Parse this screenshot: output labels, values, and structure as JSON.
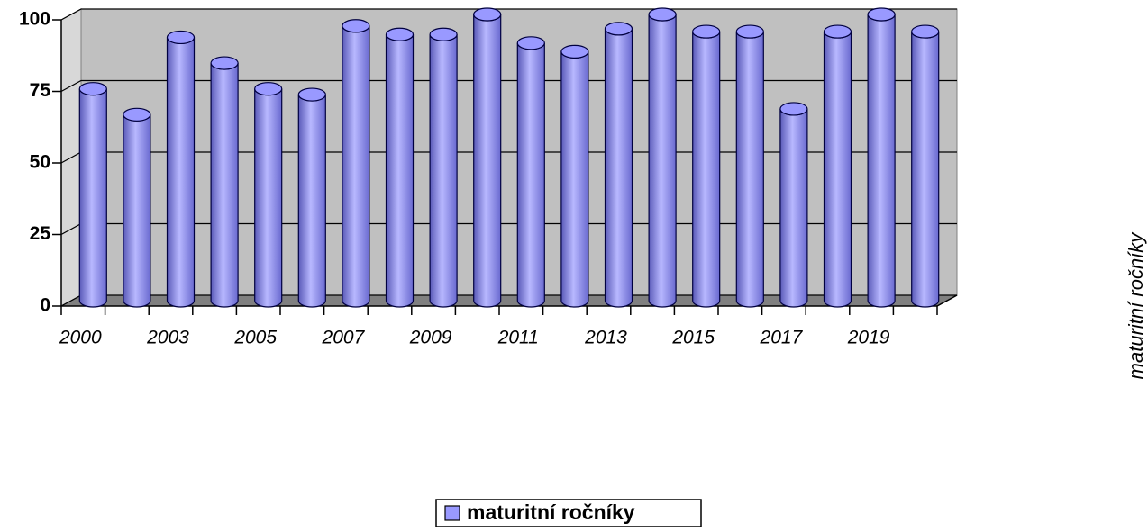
{
  "chart_data": {
    "type": "bar",
    "categories": [
      "2000",
      null,
      "2003",
      null,
      "2005",
      null,
      "2007",
      null,
      "2009",
      null,
      "2011",
      null,
      "2013",
      null,
      "2015",
      null,
      "2017",
      null,
      "2019",
      null
    ],
    "series": [
      {
        "name": "maturitní ročníky",
        "color": "#9999ff",
        "values": [
          74,
          65,
          92,
          83,
          74,
          72,
          96,
          93,
          93,
          100,
          90,
          87,
          95,
          100,
          94,
          94,
          67,
          94,
          100,
          94
        ]
      }
    ],
    "y_label": "maturitní ročníky",
    "ylim": [
      0,
      100
    ],
    "yticks": [
      0,
      25,
      50,
      75,
      100
    ],
    "grid": true,
    "legend": "bottom"
  }
}
